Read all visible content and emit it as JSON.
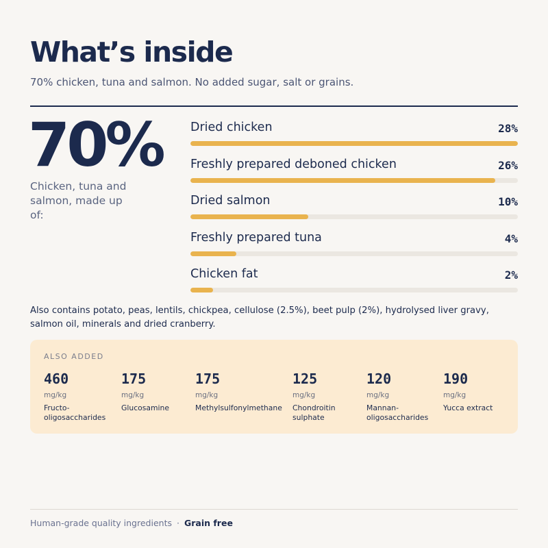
{
  "header": {
    "title": "What’s inside",
    "subtitle": "70% chicken, tuna and salmon. No added sugar, salt or grains."
  },
  "summary": {
    "percent": "70%",
    "description": "Chicken, tuna and salmon, made up of:"
  },
  "ingredients": [
    {
      "label": "Dried chicken",
      "percent_label": "28%",
      "fill": 1.0
    },
    {
      "label": "Freshly prepared deboned chicken",
      "percent_label": "26%",
      "fill": 0.93
    },
    {
      "label": "Dried salmon",
      "percent_label": "10%",
      "fill": 0.36
    },
    {
      "label": "Freshly prepared tuna",
      "percent_label": "4%",
      "fill": 0.14
    },
    {
      "label": "Chicken fat",
      "percent_label": "2%",
      "fill": 0.07
    }
  ],
  "also_contains": "Also contains potato, peas, lentils, chickpea, cellulose (2.5%), beet pulp (2%), hydrolysed liver gravy, salmon oil, minerals and dried cranberry.",
  "also_added": {
    "label": "ALSO ADDED",
    "items": [
      {
        "value": "460",
        "unit": "mg/kg",
        "name": "Fructo-\noligosaccharides"
      },
      {
        "value": "175",
        "unit": "mg/kg",
        "name": "Glucosamine"
      },
      {
        "value": "175",
        "unit": "mg/kg",
        "name": "Methylsulfonylmethane"
      },
      {
        "value": "125",
        "unit": "mg/kg",
        "name": "Chondroitin\nsulphate"
      },
      {
        "value": "120",
        "unit": "mg/kg",
        "name": "Mannan-\noligosaccharides"
      },
      {
        "value": "190",
        "unit": "mg/kg",
        "name": "Yucca extract"
      }
    ]
  },
  "footer": {
    "quality": "Human-grade quality ingredients",
    "separator": "·",
    "grain_free": "Grain free"
  },
  "colors": {
    "background": "#f8f6f3",
    "navy": "#1c2a4d",
    "bar_fill": "#e9b34e",
    "bar_track": "#ebe7e1",
    "panel": "#fcebd2"
  }
}
